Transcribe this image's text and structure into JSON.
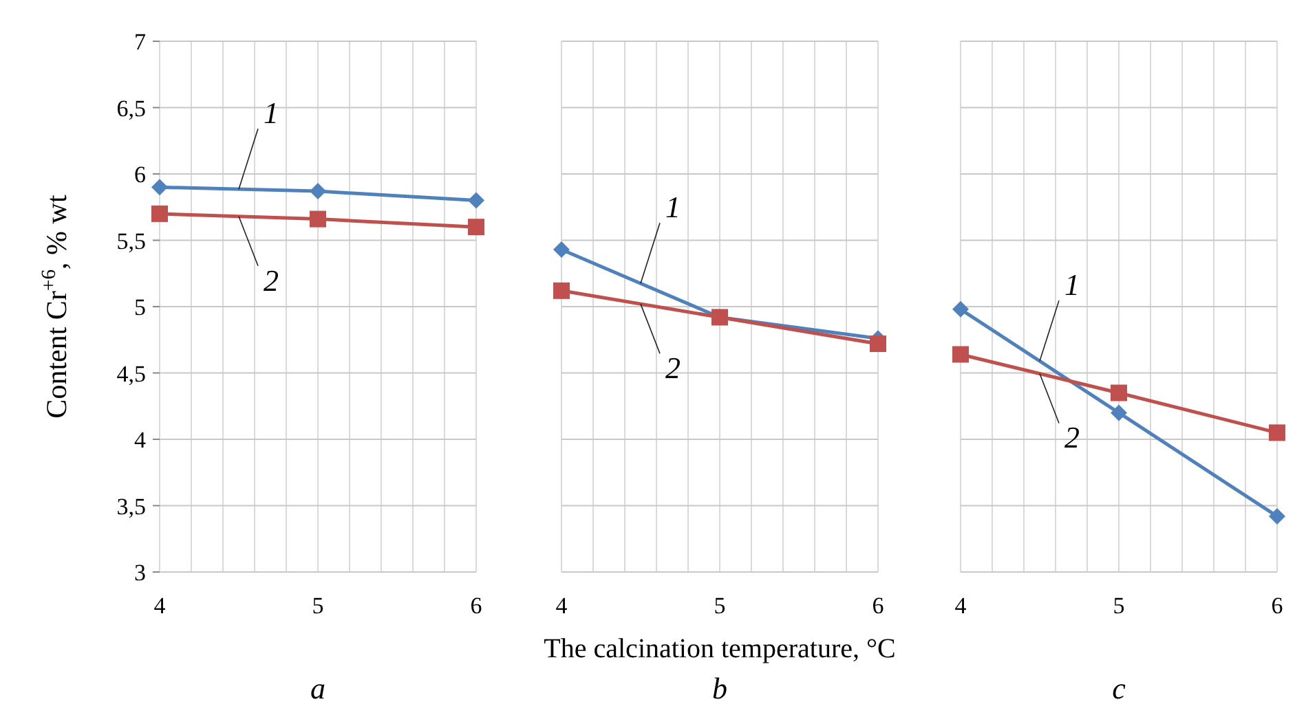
{
  "chart_data": [
    {
      "type": "line",
      "title": "a",
      "ylabel": "Content Cr$^{+6}$, % wt",
      "x": [
        4,
        5,
        6
      ],
      "xlim": [
        4,
        6
      ],
      "xticks": [
        4,
        {
          "value": 4.2,
          "label": null
        },
        {
          "value": 4.4,
          "label": null
        },
        {
          "value": 4.6,
          "label": null
        },
        {
          "value": 4.8,
          "label": null
        },
        5,
        {
          "value": 5.2,
          "label": null
        },
        {
          "value": 5.4,
          "label": null
        },
        {
          "value": 5.6,
          "label": null
        },
        {
          "value": 5.8,
          "label": null
        },
        6
      ],
      "ylim": [
        3,
        7
      ],
      "yticks": [
        3,
        {
          "value": 3.5,
          "label": "3,5"
        },
        4,
        {
          "value": 4.5,
          "label": "4,5"
        },
        5,
        {
          "value": 5.5,
          "label": "5,5"
        },
        6,
        {
          "value": 6.5,
          "label": "6,5"
        },
        7
      ],
      "grid": true,
      "series": [
        {
          "name": "1",
          "color": "#4f81bd",
          "marker": "diamond",
          "values": [
            5.9,
            5.87,
            5.8
          ]
        },
        {
          "name": "2",
          "color": "#c0504d",
          "marker": "square",
          "values": [
            5.7,
            5.66,
            5.6
          ]
        }
      ]
    },
    {
      "type": "line",
      "title": "b",
      "xlabel": "The calcination temperature, °C",
      "x": [
        4,
        5,
        6
      ],
      "xlim": [
        4,
        6
      ],
      "xticks": [
        4,
        {
          "value": 4.2,
          "label": null
        },
        {
          "value": 4.4,
          "label": null
        },
        {
          "value": 4.6,
          "label": null
        },
        {
          "value": 4.8,
          "label": null
        },
        5,
        {
          "value": 5.2,
          "label": null
        },
        {
          "value": 5.4,
          "label": null
        },
        {
          "value": 5.6,
          "label": null
        },
        {
          "value": 5.8,
          "label": null
        },
        6
      ],
      "ylim": [
        3,
        7
      ],
      "yticks": [
        {
          "value": 3,
          "label": null
        },
        {
          "value": 3.5,
          "label": null
        },
        {
          "value": 4,
          "label": null
        },
        {
          "value": 4.5,
          "label": null
        },
        {
          "value": 5,
          "label": null
        },
        {
          "value": 5.5,
          "label": null
        },
        {
          "value": 6,
          "label": null
        },
        {
          "value": 6.5,
          "label": null
        },
        {
          "value": 7,
          "label": null
        }
      ],
      "grid": true,
      "tick_labels": "x",
      "series": [
        {
          "name": "1",
          "color": "#4f81bd",
          "marker": "diamond",
          "values": [
            5.43,
            4.92,
            4.76
          ]
        },
        {
          "name": "2",
          "color": "#c0504d",
          "marker": "square",
          "values": [
            5.12,
            4.92,
            4.72
          ]
        }
      ]
    },
    {
      "type": "line",
      "title": "c",
      "x": [
        4,
        5,
        6
      ],
      "xlim": [
        4,
        6
      ],
      "xticks": [
        4,
        {
          "value": 4.2,
          "label": null
        },
        {
          "value": 4.4,
          "label": null
        },
        {
          "value": 4.6,
          "label": null
        },
        {
          "value": 4.8,
          "label": null
        },
        5,
        {
          "value": 5.2,
          "label": null
        },
        {
          "value": 5.4,
          "label": null
        },
        {
          "value": 5.6,
          "label": null
        },
        {
          "value": 5.8,
          "label": null
        },
        6
      ],
      "ylim": [
        3,
        7
      ],
      "yticks": [
        {
          "value": 3,
          "label": null
        },
        {
          "value": 3.5,
          "label": null
        },
        {
          "value": 4,
          "label": null
        },
        {
          "value": 4.5,
          "label": null
        },
        {
          "value": 5,
          "label": null
        },
        {
          "value": 5.5,
          "label": null
        },
        {
          "value": 6,
          "label": null
        },
        {
          "value": 6.5,
          "label": null
        },
        {
          "value": 7,
          "label": null
        }
      ],
      "grid": true,
      "tick_labels": "x",
      "series": [
        {
          "name": "1",
          "color": "#4f81bd",
          "marker": "diamond",
          "values": [
            4.98,
            4.2,
            3.42
          ]
        },
        {
          "name": "2",
          "color": "#c0504d",
          "marker": "square",
          "values": [
            4.64,
            4.35,
            4.05
          ]
        }
      ]
    }
  ]
}
